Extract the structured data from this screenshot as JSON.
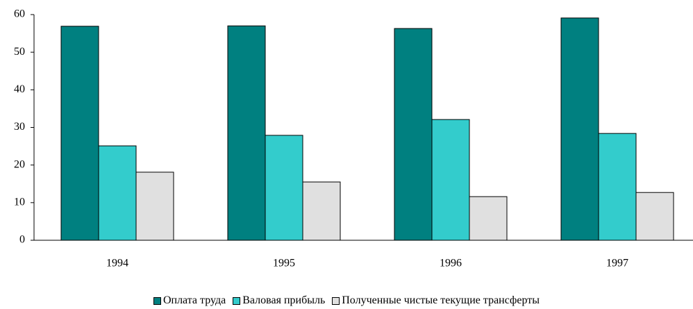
{
  "chart_data": {
    "type": "bar",
    "categories": [
      "1994",
      "1995",
      "1996",
      "1997"
    ],
    "series": [
      {
        "name": "Оплата труда",
        "color": "#008080",
        "values": [
          56.9,
          57.0,
          56.3,
          59.1
        ]
      },
      {
        "name": "Валовая прибыль",
        "color": "#33cccc",
        "values": [
          25.1,
          27.9,
          32.1,
          28.4
        ]
      },
      {
        "name": "Полученные чистые текущие трансферты",
        "color": "#e0e0e0",
        "values": [
          18.1,
          15.5,
          11.6,
          12.7
        ]
      }
    ],
    "ylim": [
      0,
      60
    ],
    "yticks": [
      0,
      10,
      20,
      30,
      40,
      50,
      60
    ],
    "grid": false,
    "legend": "bottom"
  }
}
